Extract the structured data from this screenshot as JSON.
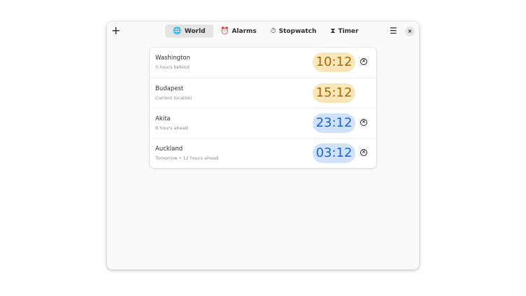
{
  "header": {
    "add_icon": "+",
    "menu_icon": "☰",
    "close_icon": "×",
    "tabs": [
      {
        "label": "World",
        "icon": "🌐"
      },
      {
        "label": "Alarms",
        "icon": "⏰"
      },
      {
        "label": "Stopwatch",
        "icon": "⏱"
      },
      {
        "label": "Timer",
        "icon": "⧗"
      }
    ],
    "active_tab": "World"
  },
  "clocks": [
    {
      "city": "Washington",
      "detail": "5 hours behind",
      "time": "10:12",
      "period": "day",
      "removable": true
    },
    {
      "city": "Budapest",
      "detail": "Current location",
      "time": "15:12",
      "period": "day",
      "removable": false
    },
    {
      "city": "Akita",
      "detail": "8 hours ahead",
      "time": "23:12",
      "period": "night",
      "removable": true
    },
    {
      "city": "Auckland",
      "detail": "Tomorrow • 12 hours ahead",
      "time": "03:12",
      "period": "night",
      "removable": true
    }
  ],
  "colors": {
    "day_bg": "#f8e6b8",
    "day_text": "#a36a00",
    "night_bg": "#cfe2fa",
    "night_text": "#1c62c8"
  }
}
